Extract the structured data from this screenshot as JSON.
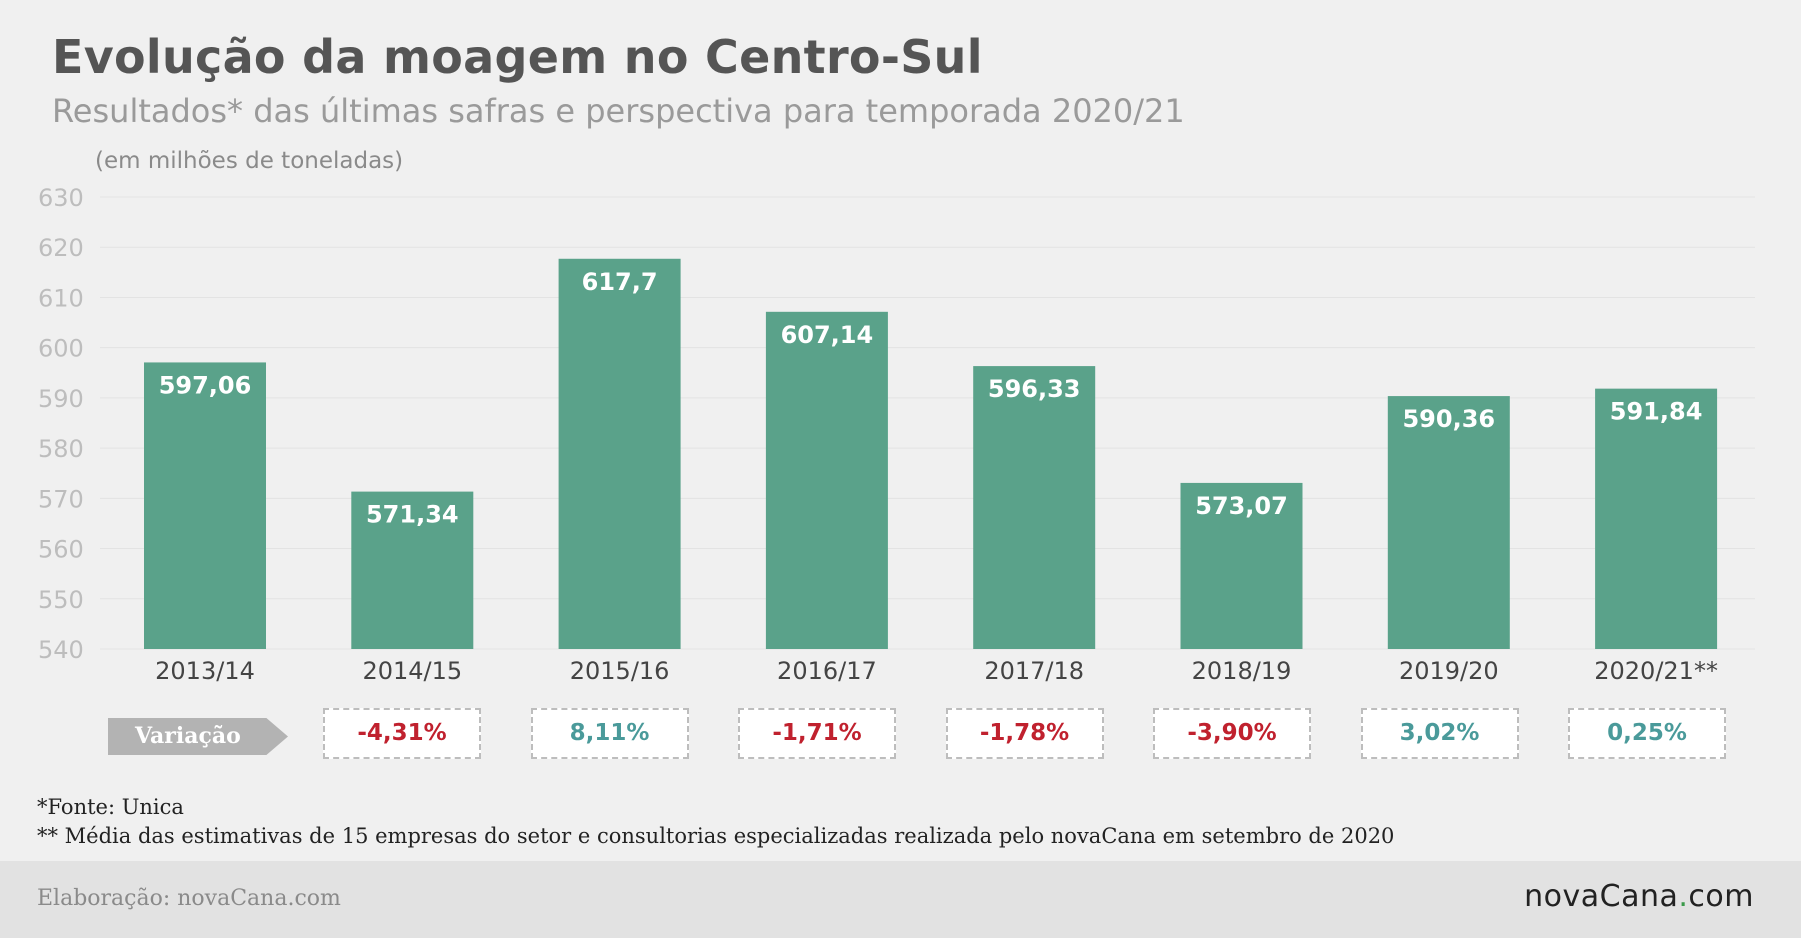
{
  "title": "Evolução da moagem no Centro-Sul",
  "subtitle": "Resultados* das últimas safras e perspectiva para temporada 2020/21",
  "unit_label": "(em milhões de toneladas)",
  "chart_data": {
    "type": "bar",
    "categories": [
      "2013/14",
      "2014/15",
      "2015/16",
      "2016/17",
      "2017/18",
      "2018/19",
      "2019/20",
      "2020/21**"
    ],
    "values": [
      597.06,
      571.34,
      617.7,
      607.14,
      596.33,
      573.07,
      590.36,
      591.84
    ],
    "value_labels": [
      "597,06",
      "571,34",
      "617,7",
      "607,14",
      "596,33",
      "573,07",
      "590,36",
      "591,84"
    ],
    "ylim": [
      540,
      630
    ],
    "yticks": [
      "540",
      "550",
      "560",
      "570",
      "580",
      "590",
      "600",
      "610",
      "620",
      "630"
    ],
    "grid": true,
    "bar_color": "#5aa28a"
  },
  "variation": {
    "label": "Variação",
    "values": [
      "-4,31%",
      "8,11%",
      "-1,71%",
      "-1,78%",
      "-3,90%",
      "3,02%",
      "0,25%"
    ],
    "signs": [
      "neg",
      "pos",
      "neg",
      "neg",
      "neg",
      "pos",
      "pos"
    ],
    "colors": {
      "neg": "#c0212e",
      "pos": "#4a9a9a"
    }
  },
  "notes": {
    "source": "*Fonte: Unica",
    "estimate": "** Média das estimativas de 15 empresas do setor e consultorias especializadas realizada pelo novaCana em setembro de 2020"
  },
  "footer": {
    "credit": "Elaboração: novaCana.com",
    "logo_main": "novaCana",
    "logo_dot": ".",
    "logo_tld": "com"
  }
}
